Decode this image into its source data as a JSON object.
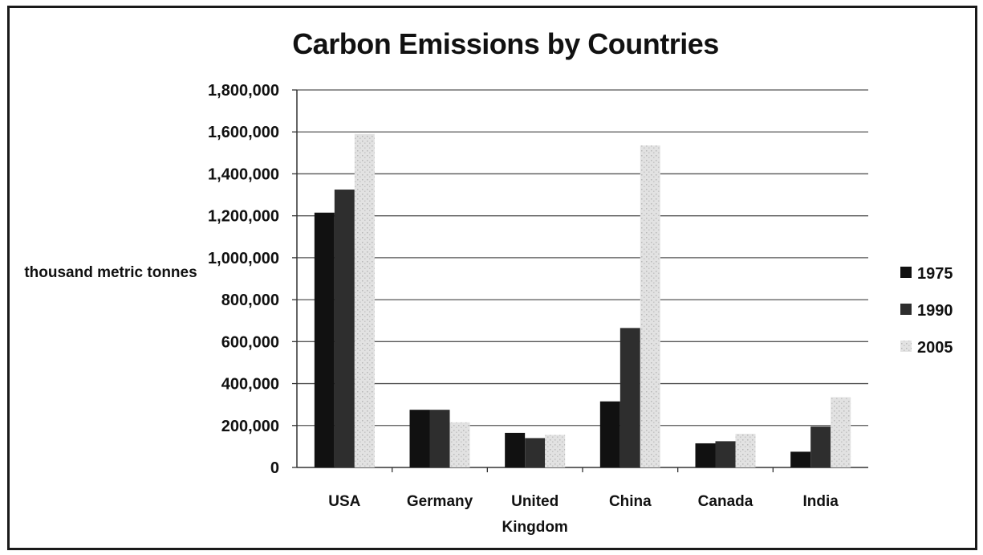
{
  "chart_data": {
    "type": "bar",
    "title": "Carbon Emissions by Countries",
    "ylabel": "thousand metric tonnes",
    "xlabel": "",
    "categories": [
      [
        "USA"
      ],
      [
        "Germany"
      ],
      [
        "United",
        "Kingdom"
      ],
      [
        "China"
      ],
      [
        "Canada"
      ],
      [
        "India"
      ]
    ],
    "series": [
      {
        "name": "1975",
        "color": "#111111",
        "values": [
          1215000,
          275000,
          165000,
          315000,
          115000,
          75000
        ]
      },
      {
        "name": "1990",
        "color": "#2e2e2e",
        "values": [
          1325000,
          275000,
          140000,
          665000,
          125000,
          195000
        ]
      },
      {
        "name": "2005",
        "color": "#dedede",
        "values": [
          1590000,
          215000,
          155000,
          1535000,
          160000,
          335000
        ]
      }
    ],
    "ylim": [
      0,
      1800000
    ],
    "yticks": [
      0,
      200000,
      400000,
      600000,
      800000,
      1000000,
      1200000,
      1400000,
      1600000,
      1800000
    ],
    "ytick_labels": [
      "0",
      "200,000",
      "400,000",
      "600,000",
      "800,000",
      "1,000,000",
      "1,200,000",
      "1,400,000",
      "1,600,000",
      "1,800,000"
    ],
    "grid": true,
    "legend_position": "right"
  }
}
